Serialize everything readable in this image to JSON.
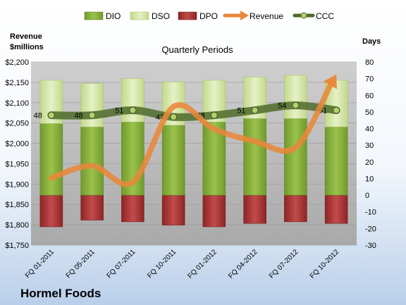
{
  "chart_data": {
    "type": "bar",
    "title": "Quarterly Periods",
    "company": "Hormel Foods",
    "left_axis_label_line1": "Revenue",
    "left_axis_label_line2": "$millions",
    "right_axis_label": "Days",
    "categories": [
      "FQ 01-2011",
      "FQ 05-2011",
      "FQ 07-2011",
      "FQ 10-2011",
      "FQ 01-2012",
      "FQ 04-2012",
      "FQ 07-2012",
      "FQ 10-2012"
    ],
    "left_ylim": [
      1750,
      2200
    ],
    "left_ticks": [
      "$1,750",
      "$1,800",
      "$1,850",
      "$1,900",
      "$1,950",
      "$2,000",
      "$2,050",
      "$2,100",
      "$2,150",
      "$2,200"
    ],
    "right_ylim": [
      -30,
      80
    ],
    "right_ticks": [
      "-30",
      "-20",
      "-10",
      "0",
      "10",
      "20",
      "30",
      "40",
      "50",
      "60",
      "70",
      "80"
    ],
    "legend": [
      "DIO",
      "DSO",
      "DPO",
      "Revenue",
      "CCC"
    ],
    "series": [
      {
        "name": "DIO",
        "axis": "right",
        "values": [
          43,
          41,
          44,
          42,
          44,
          46,
          46,
          41
        ]
      },
      {
        "name": "DSO",
        "axis": "right",
        "values": [
          26,
          26,
          26,
          26,
          25,
          25,
          26,
          28
        ]
      },
      {
        "name": "DPO",
        "axis": "right",
        "values": [
          -19,
          -15,
          -16,
          -18,
          -19,
          -17,
          -16,
          -17
        ]
      },
      {
        "name": "Revenue",
        "axis": "left",
        "values": [
          1915,
          1945,
          1905,
          2090,
          2035,
          2005,
          1990,
          2170
        ]
      },
      {
        "name": "CCC",
        "axis": "right",
        "values": [
          48,
          48,
          51,
          47,
          48,
          51,
          54,
          51
        ],
        "labels": [
          "48",
          "48",
          "51",
          "47",
          "48",
          "51",
          "54",
          "51"
        ]
      }
    ],
    "colors": {
      "DIO": "#8fb33e",
      "DSO": "#d5e6a8",
      "DPO": "#b23a3a",
      "Revenue": "#e8873a",
      "CCC": "#4e6b2a",
      "plot_bg": "#bdbdbd",
      "page_bg": "#e6eef8"
    },
    "grid": true,
    "legend_position": "top"
  }
}
